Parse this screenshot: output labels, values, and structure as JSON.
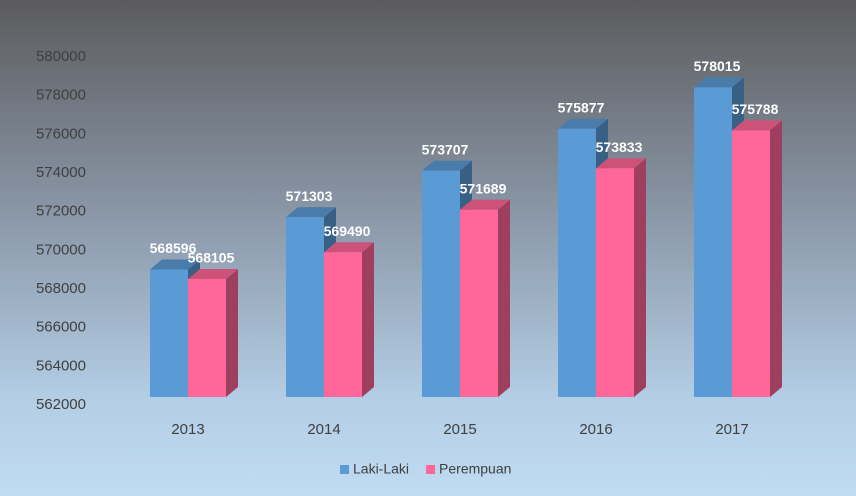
{
  "chart_data": {
    "type": "bar3d",
    "categories": [
      "2013",
      "2014",
      "2015",
      "2016",
      "2017"
    ],
    "series": [
      {
        "name": "Laki-Laki",
        "color": "#5b9bd5",
        "values": [
          568596,
          571303,
          573707,
          575877,
          578015
        ]
      },
      {
        "name": "Perempuan",
        "color": "#ff6699",
        "values": [
          568105,
          569490,
          571689,
          573833,
          575788
        ]
      }
    ],
    "ylim": [
      562000,
      580000
    ],
    "yticks": [
      562000,
      564000,
      566000,
      568000,
      570000,
      572000,
      574000,
      576000,
      578000,
      580000
    ],
    "legend": "bottom"
  }
}
